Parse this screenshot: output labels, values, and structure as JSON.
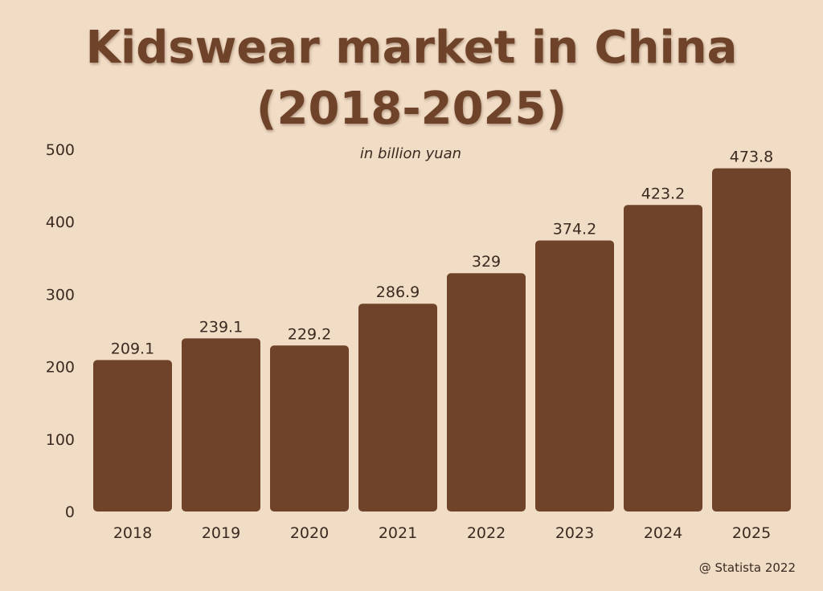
{
  "colors": {
    "background": "#f1dcc6",
    "bar": "#6f4329",
    "title": "#6f4329",
    "text": "#3b2a20"
  },
  "chart_data": {
    "type": "bar",
    "title_lines": [
      "Kidswear market in China",
      "(2018-2025)"
    ],
    "subtitle": "in billion yuan",
    "xlabel": "",
    "ylabel": "",
    "categories": [
      "2018",
      "2019",
      "2020",
      "2021",
      "2022",
      "2023",
      "2024",
      "2025"
    ],
    "values": [
      209.1,
      239.1,
      229.2,
      286.9,
      329,
      374.2,
      423.2,
      473.8
    ],
    "value_labels": [
      "209.1",
      "239.1",
      "229.2",
      "286.9",
      "329",
      "374.2",
      "423.2",
      "473.8"
    ],
    "ylim": [
      0,
      500
    ],
    "yticks": [
      0,
      100,
      200,
      300,
      400,
      500
    ],
    "grid": false,
    "legend": "none"
  },
  "source": "@ Statista 2022"
}
